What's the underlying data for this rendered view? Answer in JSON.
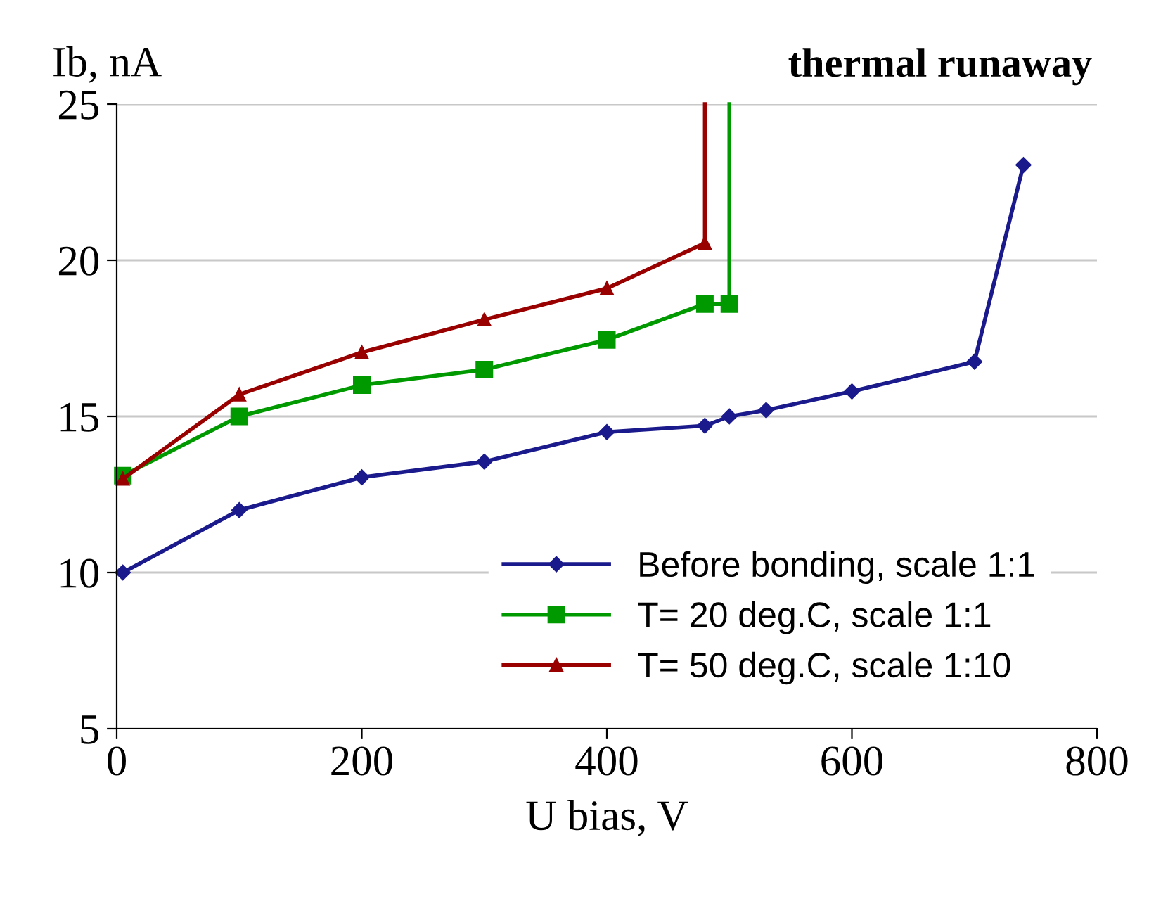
{
  "chart_data": {
    "type": "line",
    "xlabel": "U bias, V",
    "ylabel": "Ib, nA",
    "annotations": [
      "thermal runaway"
    ],
    "xlim": [
      0,
      800
    ],
    "xticks": [
      0,
      200,
      400,
      600,
      800
    ],
    "ylim": [
      5,
      25
    ],
    "yticks": [
      5,
      10,
      15,
      20,
      25
    ],
    "grid": "y",
    "legend": "bottom right",
    "line_style": "solid",
    "series": [
      {
        "name": "Before bonding, scale 1:1",
        "color": "#1a1a8c",
        "marker": "diamond",
        "x": [
          5,
          100,
          200,
          300,
          400,
          480,
          500,
          530,
          600,
          700,
          740
        ],
        "values": [
          10,
          12,
          13.05,
          13.55,
          14.5,
          14.7,
          15.0,
          15.2,
          15.8,
          16.75,
          23.05
        ]
      },
      {
        "name": "T= 20 deg.C, scale 1:1",
        "color": "#009900",
        "marker": "square",
        "x": [
          5,
          100,
          200,
          300,
          400,
          480,
          500
        ],
        "values": [
          13.1,
          15.0,
          16.0,
          16.5,
          17.45,
          18.6,
          18.6
        ]
      },
      {
        "name": "T= 50 deg.C, scale 1:10",
        "color": "#990000",
        "marker": "triangle",
        "x": [
          5,
          100,
          200,
          300,
          400,
          480
        ],
        "values": [
          13.0,
          15.7,
          17.05,
          18.1,
          19.1,
          20.55
        ]
      },
      {
        "color": "#009900",
        "marker": "none",
        "x": [
          500,
          500
        ],
        "values": [
          18.6,
          25
        ]
      },
      {
        "color": "#990000",
        "marker": "none",
        "x": [
          480,
          480
        ],
        "values": [
          20.55,
          25
        ]
      }
    ]
  }
}
